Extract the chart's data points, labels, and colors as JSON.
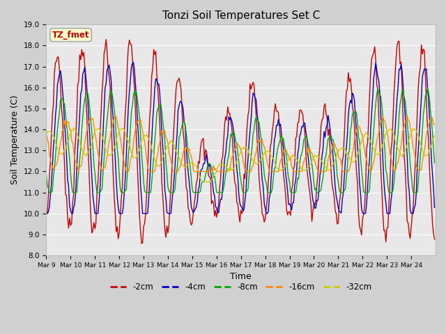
{
  "title": "Tonzi Soil Temperatures Set C",
  "xlabel": "Time",
  "ylabel": "Soil Temperature (C)",
  "ylim": [
    8.0,
    19.0
  ],
  "yticks": [
    8.0,
    9.0,
    10.0,
    11.0,
    12.0,
    13.0,
    14.0,
    15.0,
    16.0,
    17.0,
    18.0,
    19.0
  ],
  "xtick_labels": [
    "Mar 9",
    "Mar 10",
    "Mar 11",
    "Mar 12",
    "Mar 13",
    "Mar 14",
    "Mar 15",
    "Mar 16",
    "Mar 17",
    "Mar 18",
    "Mar 19",
    "Mar 20",
    "Mar 21",
    "Mar 22",
    "Mar 23",
    "Mar 24"
  ],
  "colors": {
    "-2cm": "#cc0000",
    "-4cm": "#0000cc",
    "-8cm": "#00aa00",
    "-16cm": "#ff8800",
    "-32cm": "#cccc00"
  },
  "legend_label": "TZ_fmet",
  "fig_bg": "#d0d0d0",
  "plot_bg": "#e8e8e8"
}
